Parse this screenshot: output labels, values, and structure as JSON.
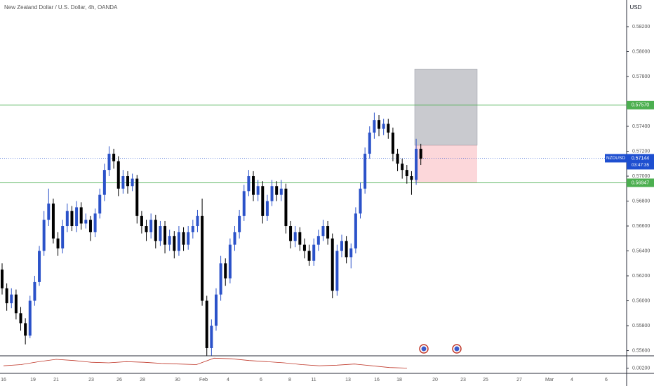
{
  "chart_data": {
    "type": "candlestick",
    "title": "New Zealand Dollar / U.S. Dollar, 4h, OANDA",
    "currency": "USD",
    "symbol": "NZDUSD",
    "countdown": "03:47:35",
    "up_color": "#2b52c9",
    "down_color": "#000000",
    "ylim": [
      0.55558,
      0.58414
    ],
    "yticks": [
      {
        "value": 0.582,
        "label": "0.58200"
      },
      {
        "value": 0.58,
        "label": "0.58000"
      },
      {
        "value": 0.578,
        "label": "0.57800"
      },
      {
        "value": 0.574,
        "label": "0.57400"
      },
      {
        "value": 0.572,
        "label": "0.57200"
      },
      {
        "value": 0.57,
        "label": "0.57000"
      },
      {
        "value": 0.568,
        "label": "0.56800"
      },
      {
        "value": 0.566,
        "label": "0.56600"
      },
      {
        "value": 0.564,
        "label": "0.56400"
      },
      {
        "value": 0.562,
        "label": "0.56200"
      },
      {
        "value": 0.56,
        "label": "0.56000"
      },
      {
        "value": 0.558,
        "label": "0.55800"
      },
      {
        "value": 0.556,
        "label": "0.55600"
      }
    ],
    "x_labels": [
      "16",
      "19",
      "21",
      "23",
      "26",
      "28",
      "30",
      "Feb",
      "4",
      "6",
      "8",
      "11",
      "13",
      "16",
      "18",
      "20",
      "23",
      "25",
      "27",
      "Mar",
      "4",
      "6"
    ],
    "opens": [
      0.5625,
      0.561,
      0.5598,
      0.5605,
      0.559,
      0.5582,
      0.5572,
      0.56,
      0.5615,
      0.564,
      0.5665,
      0.5678,
      0.565,
      0.5642,
      0.566,
      0.5672,
      0.566,
      0.5675,
      0.5662,
      0.5665,
      0.5655,
      0.567,
      0.5685,
      0.5705,
      0.5718,
      0.5712,
      0.569,
      0.57,
      0.5692,
      0.5698,
      0.5668,
      0.566,
      0.5655,
      0.5665,
      0.5648,
      0.566,
      0.5645,
      0.5652,
      0.564,
      0.5655,
      0.5645,
      0.5655,
      0.566,
      0.5668,
      0.56,
      0.5562,
      0.558,
      0.5605,
      0.563,
      0.5618,
      0.5645,
      0.5655,
      0.5668,
      0.5688,
      0.57,
      0.5685,
      0.5692,
      0.5668,
      0.568,
      0.5692,
      0.5685,
      0.569,
      0.566,
      0.5648,
      0.5655,
      0.5645,
      0.564,
      0.5632,
      0.5645,
      0.5652,
      0.566,
      0.565,
      0.5608,
      0.564,
      0.5648,
      0.5635,
      0.5642,
      0.567,
      0.569,
      0.5718,
      0.5735,
      0.5745,
      0.5738,
      0.5742,
      0.5735,
      0.5718,
      0.571,
      0.5705,
      0.57,
      0.5697,
      0.5722
    ],
    "highs": [
      0.563,
      0.5614,
      0.561,
      0.5609,
      0.5595,
      0.5586,
      0.5604,
      0.562,
      0.5644,
      0.5672,
      0.569,
      0.5682,
      0.5655,
      0.5665,
      0.5678,
      0.5676,
      0.568,
      0.5679,
      0.567,
      0.5668,
      0.5674,
      0.569,
      0.571,
      0.5724,
      0.5722,
      0.5716,
      0.5705,
      0.5704,
      0.5702,
      0.5701,
      0.5672,
      0.5665,
      0.567,
      0.5669,
      0.5664,
      0.5664,
      0.5657,
      0.5656,
      0.566,
      0.5659,
      0.566,
      0.5665,
      0.5673,
      0.5682,
      0.5604,
      0.5585,
      0.561,
      0.5636,
      0.5634,
      0.565,
      0.566,
      0.5673,
      0.5693,
      0.5705,
      0.5704,
      0.5697,
      0.5696,
      0.5685,
      0.5697,
      0.5696,
      0.5697,
      0.5694,
      0.5664,
      0.566,
      0.5659,
      0.565,
      0.5645,
      0.565,
      0.5657,
      0.5665,
      0.5664,
      0.5654,
      0.5645,
      0.5653,
      0.5652,
      0.5646,
      0.5675,
      0.5695,
      0.5723,
      0.574,
      0.5751,
      0.5749,
      0.5746,
      0.5746,
      0.5739,
      0.5722,
      0.5714,
      0.5709,
      0.5704,
      0.573,
      0.5726
    ],
    "lows": [
      0.5605,
      0.5592,
      0.5594,
      0.5585,
      0.5576,
      0.5565,
      0.557,
      0.5596,
      0.5612,
      0.5636,
      0.566,
      0.5646,
      0.5636,
      0.5638,
      0.5655,
      0.5656,
      0.5655,
      0.5657,
      0.5658,
      0.5648,
      0.5651,
      0.5666,
      0.568,
      0.57,
      0.5706,
      0.5684,
      0.5686,
      0.5686,
      0.5688,
      0.5662,
      0.5654,
      0.5648,
      0.565,
      0.5642,
      0.5644,
      0.5638,
      0.564,
      0.5634,
      0.5636,
      0.564,
      0.5641,
      0.565,
      0.5655,
      0.5596,
      0.5556,
      0.5556,
      0.5576,
      0.56,
      0.5612,
      0.5614,
      0.564,
      0.565,
      0.5664,
      0.5684,
      0.568,
      0.568,
      0.5662,
      0.5664,
      0.5676,
      0.568,
      0.568,
      0.5654,
      0.5642,
      0.5643,
      0.564,
      0.5634,
      0.5628,
      0.5628,
      0.564,
      0.5648,
      0.5645,
      0.5602,
      0.5604,
      0.5635,
      0.563,
      0.5626,
      0.5638,
      0.5666,
      0.5686,
      0.5714,
      0.573,
      0.5732,
      0.5733,
      0.573,
      0.5712,
      0.5704,
      0.5698,
      0.5694,
      0.5685,
      0.5693,
      0.5709
    ],
    "closes": [
      0.561,
      0.5598,
      0.5605,
      0.559,
      0.5582,
      0.5572,
      0.56,
      0.5615,
      0.564,
      0.5665,
      0.5678,
      0.565,
      0.5642,
      0.566,
      0.5672,
      0.566,
      0.5675,
      0.5662,
      0.5665,
      0.5655,
      0.567,
      0.5685,
      0.5705,
      0.5718,
      0.5712,
      0.569,
      0.57,
      0.5692,
      0.5698,
      0.5668,
      0.566,
      0.5655,
      0.5665,
      0.5648,
      0.566,
      0.5645,
      0.5652,
      0.564,
      0.5655,
      0.5645,
      0.5655,
      0.566,
      0.5668,
      0.56,
      0.5562,
      0.558,
      0.5605,
      0.563,
      0.5618,
      0.5645,
      0.5655,
      0.5668,
      0.5688,
      0.57,
      0.5685,
      0.5692,
      0.5668,
      0.568,
      0.5692,
      0.5685,
      0.569,
      0.566,
      0.5648,
      0.5655,
      0.5645,
      0.564,
      0.5632,
      0.5645,
      0.5652,
      0.566,
      0.565,
      0.5608,
      0.564,
      0.5648,
      0.5635,
      0.5642,
      0.567,
      0.569,
      0.5718,
      0.5735,
      0.5745,
      0.5738,
      0.5742,
      0.5735,
      0.5718,
      0.571,
      0.5705,
      0.57,
      0.5697,
      0.5722,
      0.5714
    ],
    "levels": [
      {
        "value": 0.5757,
        "label": "0.57570",
        "color": "#4caf50"
      },
      {
        "value": 0.56947,
        "label": "0.56947",
        "color": "#4caf50"
      }
    ],
    "last_price": {
      "value": 0.57144,
      "label": "0.57144",
      "color": "#1e4fd0"
    },
    "position": {
      "target": 0.5786,
      "entry": 0.57248,
      "stop": 0.56947
    },
    "indicator": {
      "color": "#c0392b",
      "values": [
        0.0024,
        0.0026,
        0.0031,
        0.0035,
        0.0033,
        0.003,
        0.0029,
        0.0031,
        0.003,
        0.0028,
        0.0027,
        0.0026,
        0.0037,
        0.0036,
        0.0033,
        0.0031,
        0.0029,
        0.0026,
        0.0024,
        0.0025,
        0.0027,
        0.0024,
        0.0021,
        0.002
      ],
      "ylim": [
        0.0011,
        0.0041
      ],
      "yticks": [
        {
          "value": 0.002,
          "label": "0.00200"
        }
      ]
    }
  }
}
